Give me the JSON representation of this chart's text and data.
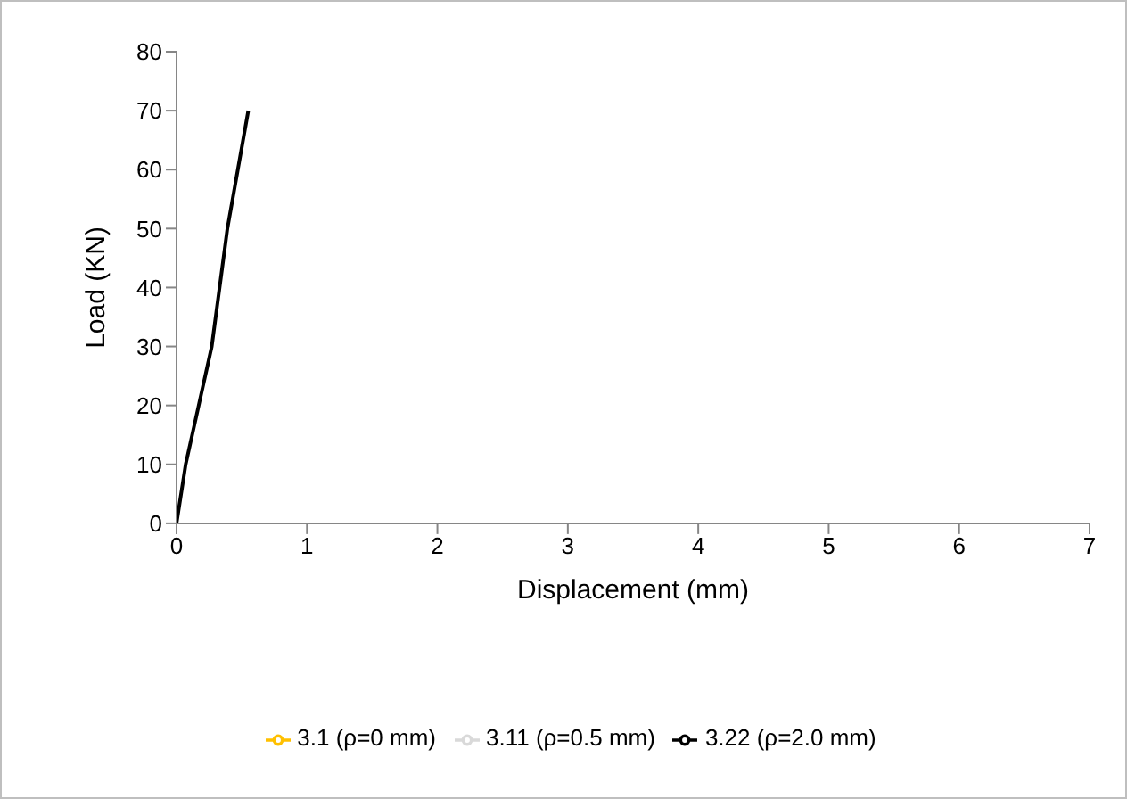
{
  "chart_data": {
    "type": "line",
    "xlabel": "Displacement (mm)",
    "ylabel": "Load (KN)",
    "xlim": [
      0,
      7
    ],
    "xticks": [
      0,
      1,
      2,
      3,
      4,
      5,
      6,
      7
    ],
    "ylim": [
      0,
      80
    ],
    "yticks": [
      0,
      10,
      20,
      30,
      40,
      50,
      60,
      70,
      80
    ],
    "grid": false,
    "legend": "bottom",
    "marker": "none",
    "line_style": "solid",
    "series": [
      {
        "name": "3.1 (ρ=0 mm)",
        "color": "#ffc000"
      },
      {
        "name": "3.11 (ρ=0.5 mm)",
        "color": "#d9d9d9"
      },
      {
        "name": "3.22 (ρ=2.0 mm)",
        "color": "#000000",
        "x": [
          0,
          0.07,
          0.17,
          0.27,
          0.39,
          0.47,
          0.55
        ],
        "values": [
          0,
          10,
          20,
          30,
          50,
          60,
          70
        ]
      }
    ]
  }
}
